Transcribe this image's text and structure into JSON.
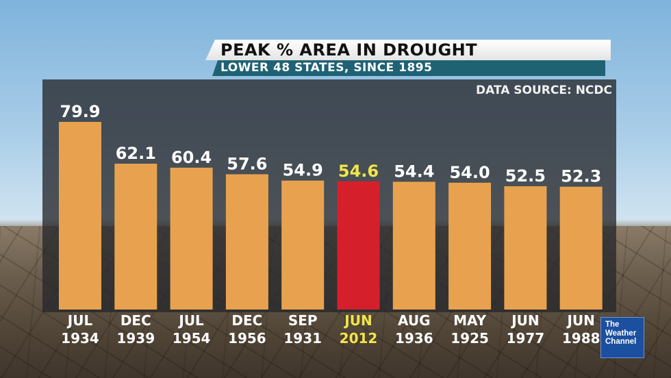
{
  "header": {
    "title": "PEAK % AREA IN DROUGHT",
    "subtitle": "LOWER 48 STATES, SINCE 1895",
    "source": "DATA SOURCE: NCDC"
  },
  "logo": {
    "text": "The\nWeather\nChannel"
  },
  "colors": {
    "bar": "#e8a24f",
    "highlight_bar": "#d5202c",
    "label": "#ffffff",
    "highlight_label": "#f2e54a"
  },
  "chart_data": {
    "type": "bar",
    "title": "PEAK % AREA IN DROUGHT",
    "subtitle": "LOWER 48 STATES, SINCE 1895",
    "categories": [
      [
        "JUL",
        "1934"
      ],
      [
        "DEC",
        "1939"
      ],
      [
        "JUL",
        "1954"
      ],
      [
        "DEC",
        "1956"
      ],
      [
        "SEP",
        "1931"
      ],
      [
        "JUN",
        "2012"
      ],
      [
        "AUG",
        "1936"
      ],
      [
        "MAY",
        "1925"
      ],
      [
        "JUN",
        "1977"
      ],
      [
        "JUN",
        "1988"
      ]
    ],
    "values": [
      79.9,
      62.1,
      60.4,
      57.6,
      54.9,
      54.6,
      54.4,
      54.0,
      52.5,
      52.3
    ],
    "value_labels": [
      "79.9",
      "62.1",
      "60.4",
      "57.6",
      "54.9",
      "54.6",
      "54.4",
      "54.0",
      "52.5",
      "52.3"
    ],
    "highlight_index": 5,
    "xlabel": "",
    "ylabel": "",
    "ylim": [
      0,
      80
    ],
    "grid": false,
    "legend": "none"
  }
}
